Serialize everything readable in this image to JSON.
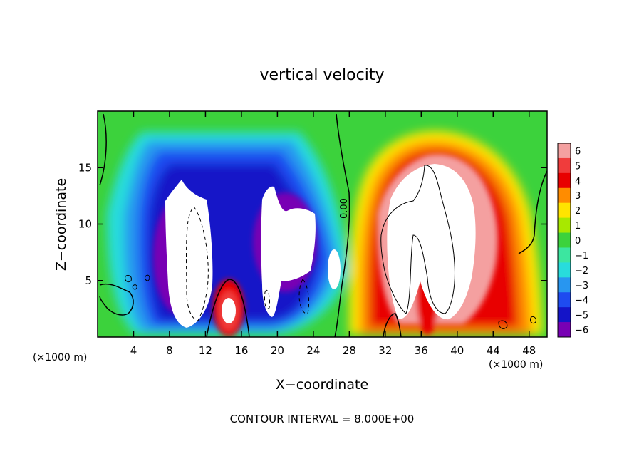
{
  "chart_data": {
    "type": "heatmap",
    "title": "vertical velocity",
    "xlabel": "X−coordinate",
    "ylabel": "Z−coordinate",
    "x_unit_left": "(×1000 m)",
    "x_unit_right": "(×1000 m)",
    "xlim": [
      0,
      50
    ],
    "ylim": [
      0,
      20
    ],
    "x_ticks": [
      4,
      8,
      12,
      16,
      20,
      24,
      28,
      32,
      36,
      40,
      44,
      48
    ],
    "y_ticks": [
      5,
      10,
      15
    ],
    "colorbar": {
      "levels": [
        6,
        5,
        4,
        3,
        2,
        1,
        0,
        -1,
        -2,
        -3,
        -4,
        -5,
        -6
      ],
      "level_labels": [
        "6",
        "5",
        "4",
        "3",
        "2",
        "1",
        "0",
        "−1",
        "−2",
        "−3",
        "−4",
        "−5",
        "−6"
      ],
      "colors": [
        "#f4a0a0",
        "#f03c3c",
        "#e80000",
        "#ff8c00",
        "#ffe400",
        "#a8e800",
        "#3cd23c",
        "#3ce6a0",
        "#28dcdc",
        "#2896f0",
        "#1e4bf0",
        "#1414c8",
        "#7800b4"
      ]
    },
    "contour_label": "0.00",
    "footer": "CONTOUR INTERVAL = 8.000E+00"
  }
}
